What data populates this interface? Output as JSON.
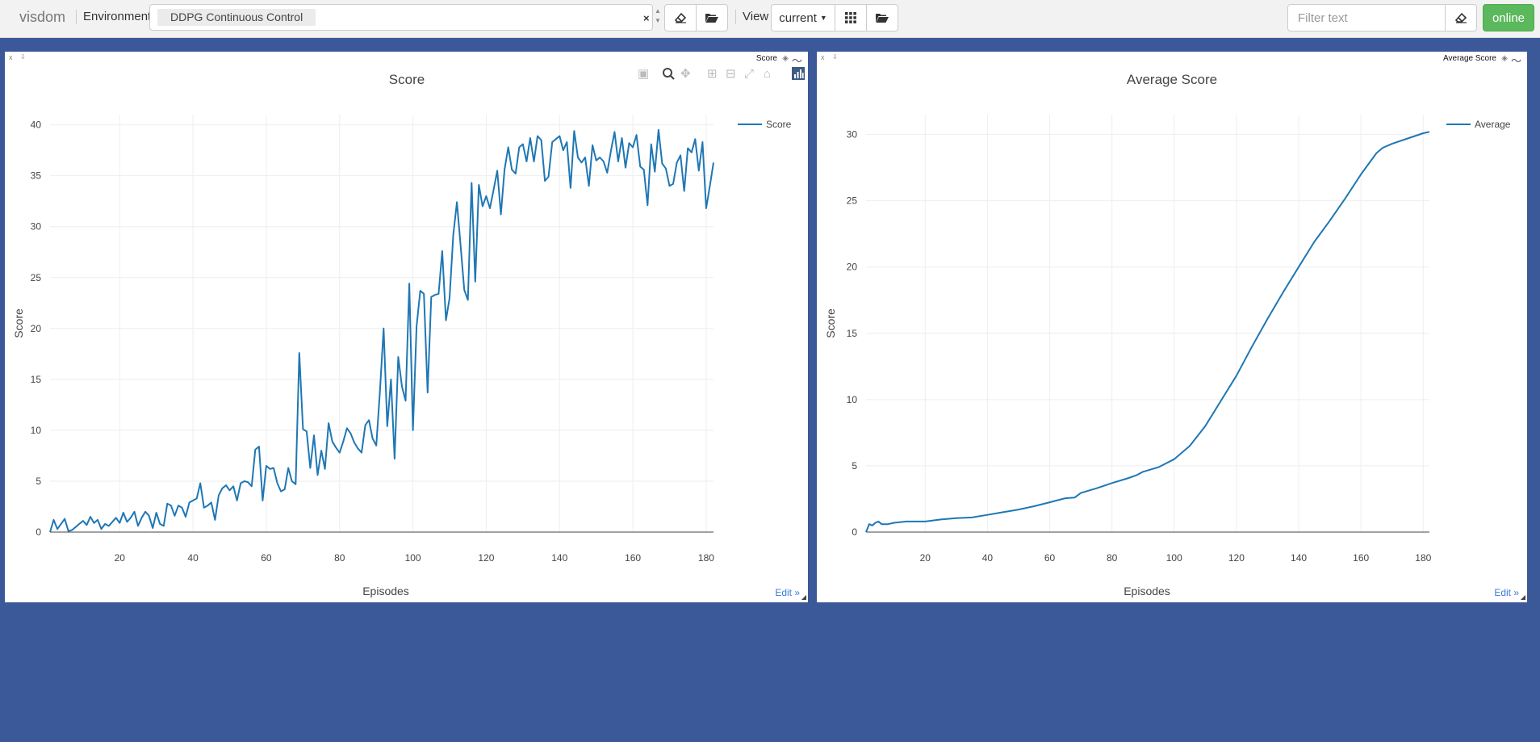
{
  "navbar": {
    "brand": "visdom",
    "environment_label": "Environment",
    "environment_tag": "DDPG Continuous Control",
    "environment_clear": "×",
    "view_label": "View",
    "view_select": "current",
    "filter_placeholder": "Filter text",
    "status": "online",
    "colors": {
      "status": "#5cb85c",
      "background": "#3b5998"
    },
    "icons": [
      "eraser-icon",
      "folder-open-icon",
      "grid-icon",
      "folder-open-icon",
      "eraser-icon"
    ]
  },
  "panes": {
    "score": {
      "title": "Score",
      "edit_label": "Edit »",
      "modebar_icons": [
        "camera-icon",
        "zoom-icon",
        "pan-icon",
        "zoom-in-icon",
        "zoom-out-icon",
        "autoscale-icon",
        "home-icon",
        "plotly-logo-icon"
      ]
    },
    "average": {
      "title": "Average Score",
      "edit_label": "Edit »"
    }
  },
  "chart_data": [
    {
      "type": "line",
      "title": "Score",
      "xlabel": "Episodes",
      "ylabel": "Score",
      "xlim": [
        1,
        182
      ],
      "ylim": [
        0,
        41
      ],
      "xticks": [
        20,
        40,
        60,
        80,
        100,
        120,
        140,
        160,
        180
      ],
      "yticks": [
        0,
        5,
        10,
        15,
        20,
        25,
        30,
        35,
        40
      ],
      "grid": true,
      "legend": "top-right",
      "color": "#1f77b4",
      "series": [
        {
          "name": "Score",
          "x_start": 1,
          "values": [
            0.0,
            1.2,
            0.3,
            0.8,
            1.3,
            0.1,
            0.2,
            0.5,
            0.8,
            1.1,
            0.7,
            1.5,
            0.9,
            1.2,
            0.3,
            0.8,
            0.6,
            1.0,
            1.4,
            0.9,
            1.9,
            1.0,
            1.4,
            2.0,
            0.6,
            1.4,
            2.0,
            1.6,
            0.4,
            1.9,
            0.8,
            0.6,
            2.8,
            2.6,
            1.6,
            2.6,
            2.4,
            1.5,
            2.9,
            3.1,
            3.3,
            4.8,
            2.4,
            2.6,
            2.9,
            1.2,
            3.6,
            4.3,
            4.6,
            4.1,
            4.5,
            3.1,
            4.8,
            5.0,
            4.9,
            4.5,
            8.1,
            8.4,
            3.1,
            6.5,
            6.2,
            6.3,
            4.8,
            4.0,
            4.2,
            6.3,
            5.0,
            4.7,
            17.6,
            10.1,
            9.9,
            6.3,
            9.5,
            5.6,
            8.0,
            6.2,
            10.7,
            8.9,
            8.3,
            7.8,
            8.9,
            10.2,
            9.7,
            8.8,
            8.2,
            7.8,
            10.5,
            11.0,
            9.2,
            8.5,
            13.8,
            20.0,
            10.4,
            15.0,
            7.2,
            17.2,
            14.3,
            12.9,
            24.4,
            10.0,
            20.2,
            23.7,
            23.4,
            13.7,
            23.1,
            23.3,
            23.4,
            27.6,
            20.8,
            23.0,
            29.2,
            32.4,
            28.2,
            23.8,
            22.8,
            34.3,
            24.6,
            34.1,
            32.0,
            33.0,
            31.8,
            33.6,
            35.5,
            31.2,
            35.6,
            37.8,
            35.6,
            35.2,
            37.8,
            38.1,
            36.4,
            38.7,
            36.4,
            38.9,
            38.5,
            34.5,
            34.9,
            38.3,
            38.6,
            38.9,
            37.5,
            38.3,
            33.8,
            39.4,
            36.8,
            36.3,
            36.8,
            34.0,
            38.0,
            36.5,
            36.8,
            36.4,
            35.3,
            37.4,
            39.3,
            36.4,
            38.7,
            35.8,
            38.2,
            37.8,
            39.0,
            35.9,
            35.6,
            32.1,
            38.1,
            35.4,
            39.5,
            36.2,
            35.7,
            34.0,
            34.2,
            36.3,
            37.0,
            33.5,
            37.7,
            37.3,
            38.6,
            35.5,
            38.3,
            31.8,
            34.0,
            36.3
          ]
        }
      ]
    },
    {
      "type": "line",
      "title": "Average Score",
      "xlabel": "Episodes",
      "ylabel": "Score",
      "xlim": [
        1,
        182
      ],
      "ylim": [
        0,
        31.5
      ],
      "xticks": [
        20,
        40,
        60,
        80,
        100,
        120,
        140,
        160,
        180
      ],
      "yticks": [
        0,
        5,
        10,
        15,
        20,
        25,
        30
      ],
      "grid": true,
      "legend": "top-right",
      "color": "#1f77b4",
      "series": [
        {
          "name": "Average",
          "x": [
            1,
            2,
            3,
            4,
            5,
            6,
            8,
            10,
            14,
            18,
            20,
            25,
            30,
            35,
            40,
            45,
            50,
            55,
            60,
            65,
            68,
            70,
            75,
            80,
            85,
            88,
            90,
            95,
            100,
            105,
            110,
            115,
            120,
            125,
            130,
            135,
            140,
            145,
            150,
            155,
            160,
            165,
            167,
            170,
            175,
            180,
            182
          ],
          "y": [
            0.0,
            0.6,
            0.5,
            0.7,
            0.8,
            0.6,
            0.6,
            0.7,
            0.8,
            0.8,
            0.8,
            0.95,
            1.05,
            1.1,
            1.3,
            1.5,
            1.7,
            1.95,
            2.25,
            2.55,
            2.6,
            2.95,
            3.3,
            3.7,
            4.05,
            4.3,
            4.55,
            4.9,
            5.5,
            6.5,
            8.0,
            9.9,
            11.8,
            14.0,
            16.1,
            18.1,
            20.0,
            21.9,
            23.5,
            25.2,
            27.0,
            28.6,
            29.0,
            29.3,
            29.7,
            30.1,
            30.2
          ]
        }
      ]
    }
  ]
}
